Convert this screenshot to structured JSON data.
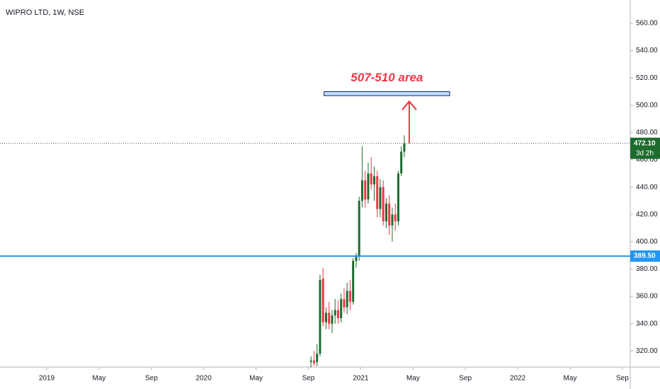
{
  "chart_data": {
    "type": "candlestick",
    "title": "WIPRO LTD, 1W, NSE",
    "up_color": "#1e6b2e",
    "down_color": "#f23645",
    "x": [
      20.2,
      20.43,
      20.66,
      20.89,
      21.12,
      21.35,
      21.58,
      21.81,
      22.04,
      22.27,
      22.5,
      22.73,
      22.96,
      23.19,
      23.42,
      23.65,
      23.88,
      24.11,
      24.34,
      24.57,
      24.8,
      25.03,
      25.26,
      25.49,
      25.72,
      25.95,
      26.18,
      26.41,
      26.64,
      26.87,
      27.1,
      27.33
    ],
    "open": [
      312,
      313,
      312,
      318,
      373,
      341,
      348,
      340,
      346,
      350,
      344,
      358,
      352,
      364,
      356,
      386,
      389,
      430,
      445,
      431,
      450,
      442,
      448,
      424,
      440,
      415,
      428,
      412,
      420,
      415,
      450,
      466
    ],
    "high": [
      316,
      320,
      325,
      376,
      381,
      352,
      356,
      350,
      358,
      357,
      362,
      366,
      370,
      372,
      388,
      392,
      433,
      470,
      452,
      458,
      462,
      455,
      452,
      446,
      445,
      432,
      434,
      425,
      428,
      452,
      470,
      478
    ],
    "low": [
      308,
      309,
      309,
      316,
      338,
      336,
      336,
      333,
      340,
      340,
      341,
      348,
      347,
      350,
      354,
      381,
      386,
      425,
      425,
      428,
      438,
      430,
      418,
      418,
      412,
      410,
      405,
      400,
      408,
      412,
      448,
      462
    ],
    "close": [
      313,
      311,
      318,
      372,
      341,
      348,
      340,
      346,
      350,
      344,
      358,
      352,
      364,
      356,
      386,
      389,
      430,
      445,
      431,
      450,
      442,
      448,
      424,
      440,
      415,
      428,
      412,
      420,
      415,
      450,
      466,
      472.1
    ],
    "xlim": [
      -3.57,
      44.6
    ],
    "xticks": [
      {
        "value": 0,
        "label": "2019"
      },
      {
        "value": 4,
        "label": "May"
      },
      {
        "value": 8,
        "label": "Sep"
      },
      {
        "value": 12,
        "label": "2020"
      },
      {
        "value": 16,
        "label": "May"
      },
      {
        "value": 20,
        "label": "Sep"
      },
      {
        "value": 24,
        "label": "2021"
      },
      {
        "value": 28,
        "label": "May"
      },
      {
        "value": 32,
        "label": "Sep"
      },
      {
        "value": 36,
        "label": "2022"
      },
      {
        "value": 40,
        "label": "May"
      },
      {
        "value": 44,
        "label": "Sep"
      }
    ],
    "ylim": [
      308.2,
      577.1
    ],
    "yticks": [
      {
        "value": 320,
        "label": "320.00"
      },
      {
        "value": 340,
        "label": "340.00"
      },
      {
        "value": 360,
        "label": "360.00"
      },
      {
        "value": 380,
        "label": "380.00"
      },
      {
        "value": 400,
        "label": "400.00"
      },
      {
        "value": 420,
        "label": "420.00"
      },
      {
        "value": 440,
        "label": "440.00"
      },
      {
        "value": 460,
        "label": "460.00"
      },
      {
        "value": 480,
        "label": "480.00"
      },
      {
        "value": 500,
        "label": "500.00"
      },
      {
        "value": 520,
        "label": "520.00"
      },
      {
        "value": 540,
        "label": "540.00"
      },
      {
        "value": 560,
        "label": "560.00"
      }
    ],
    "last_price": {
      "value": 472.1,
      "label": "472.10",
      "countdown": "3d 2h",
      "color": "#1e6b2e"
    },
    "hline": {
      "value": 389.5,
      "label": "389.50",
      "color": "#2196f3"
    },
    "zone": {
      "low": 507,
      "high": 510,
      "x": [
        21.2,
        30.8
      ],
      "label": "507-510 area",
      "color": "#f23645"
    }
  }
}
